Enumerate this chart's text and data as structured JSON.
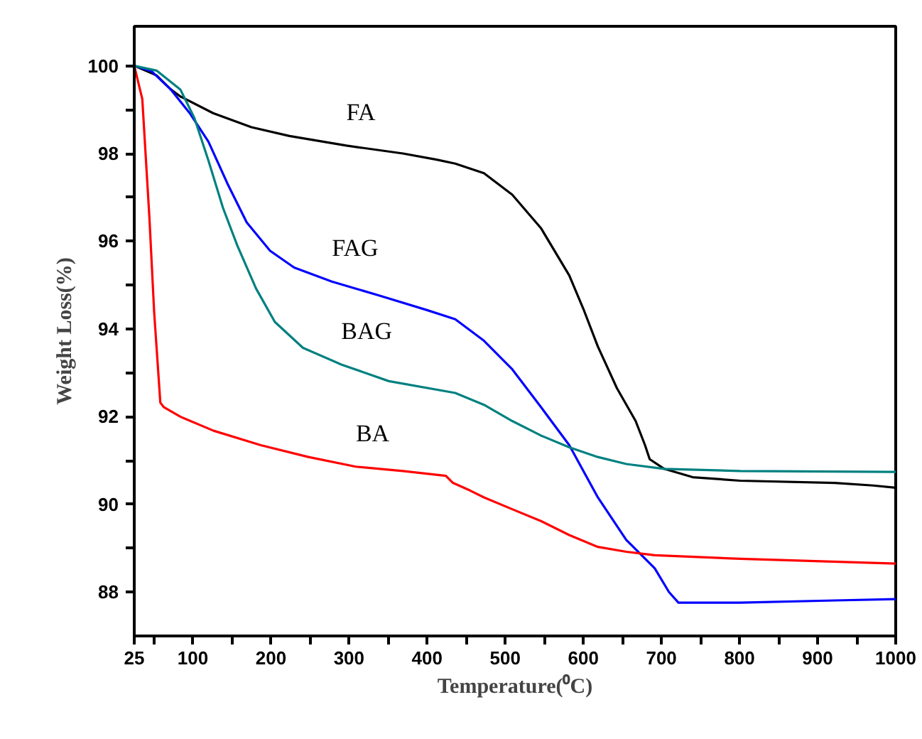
{
  "chart_data": {
    "type": "line",
    "xlabel": "Temperature(⁰C)",
    "ylabel": "Weight Loss(%)",
    "xlim": [
      25,
      1000
    ],
    "ylim": [
      87,
      100.9
    ],
    "xticks": [
      25,
      {
        "value": 50,
        "label": null
      },
      100,
      {
        "value": 150,
        "label": null
      },
      200,
      {
        "value": 250,
        "label": null
      },
      300,
      {
        "value": 350,
        "label": null
      },
      400,
      {
        "value": 450,
        "label": null
      },
      500,
      {
        "value": 550,
        "label": null
      },
      600,
      {
        "value": 650,
        "label": null
      },
      700,
      {
        "value": 750,
        "label": null
      },
      800,
      {
        "value": 850,
        "label": null
      },
      900,
      {
        "value": 950,
        "label": null
      },
      1000
    ],
    "yticks": [
      88,
      {
        "value": 89,
        "label": null
      },
      90,
      {
        "value": 91,
        "label": null
      },
      92,
      {
        "value": 93,
        "label": null
      },
      94,
      {
        "value": 95,
        "label": null
      },
      96,
      {
        "value": 97,
        "label": null
      },
      98,
      {
        "value": 99,
        "label": null
      },
      100
    ],
    "grid": false,
    "legend": false,
    "marker": "none",
    "line_style": "solid",
    "series": [
      {
        "name": "FA",
        "color": "#000000",
        "x": [
          25,
          53.6,
          71.8,
          84,
          126,
          175,
          223.7,
          296.6,
          369,
          412,
          436,
          472.8,
          509,
          545.7,
          582,
          600,
          618.6,
          643,
          667,
          679,
          685,
          703.6,
          740,
          800.8,
          922,
          971,
          1000
        ],
        "values": [
          100,
          99.78,
          99.46,
          99.3,
          98.92,
          98.6,
          98.4,
          98.18,
          98.0,
          97.86,
          97.77,
          97.55,
          97.06,
          96.3,
          95.22,
          94.46,
          93.6,
          92.65,
          91.9,
          91.35,
          91.03,
          90.81,
          90.62,
          90.54,
          90.49,
          90.43,
          90.38
        ]
      },
      {
        "name": "FAG",
        "color": "#0000ff",
        "x": [
          25,
          47.5,
          71.8,
          96,
          120,
          144.7,
          169,
          199,
          229.7,
          278,
          339,
          399.8,
          436,
          472.8,
          509,
          545.7,
          582,
          618.6,
          655,
          691.5,
          709.7,
          721.8,
          800.8,
          922.3,
          1000
        ],
        "values": [
          100,
          99.87,
          99.46,
          98.92,
          98.27,
          97.3,
          96.43,
          95.78,
          95.4,
          95.08,
          94.76,
          94.43,
          94.22,
          93.73,
          93.08,
          92.22,
          91.35,
          90.16,
          89.19,
          88.54,
          88.0,
          87.76,
          87.76,
          87.81,
          87.84
        ]
      },
      {
        "name": "BAG",
        "color": "#008080",
        "x": [
          25,
          53.6,
          84,
          102,
          120,
          138.6,
          157,
          181,
          205,
          241,
          290,
          351,
          436,
          472.8,
          509,
          545.7,
          582,
          618.6,
          655,
          703.6,
          800.8,
          1000
        ],
        "values": [
          100,
          99.89,
          99.46,
          98.81,
          97.84,
          96.76,
          95.9,
          94.92,
          94.16,
          93.57,
          93.19,
          92.81,
          92.54,
          92.27,
          91.9,
          91.57,
          91.3,
          91.08,
          90.92,
          90.81,
          90.76,
          90.74
        ]
      },
      {
        "name": "BA",
        "color": "#ff0000",
        "x": [
          25,
          35.3,
          44.4,
          50.5,
          58.4,
          62.7,
          84,
          126.5,
          187,
          248,
          308.7,
          369,
          424,
          433,
          454.5,
          472.8,
          509,
          545.7,
          582,
          618.6,
          655,
          691.5,
          800.8,
          1000
        ],
        "values": [
          100,
          99.24,
          96.54,
          94.38,
          92.32,
          92.22,
          92.0,
          91.68,
          91.35,
          91.08,
          90.86,
          90.76,
          90.65,
          90.49,
          90.32,
          90.16,
          89.89,
          89.62,
          89.3,
          89.03,
          88.92,
          88.84,
          88.76,
          88.65
        ]
      }
    ]
  }
}
